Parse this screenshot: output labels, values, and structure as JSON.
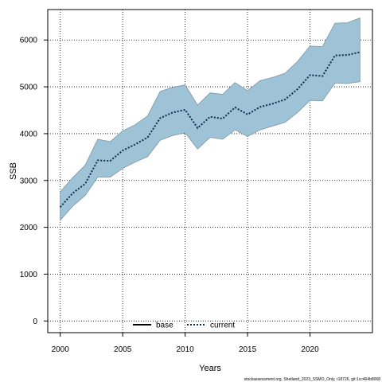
{
  "chart_data": {
    "type": "line",
    "title": "",
    "xlabel": "Years",
    "ylabel": "SSB",
    "xlim": [
      1999,
      2025
    ],
    "ylim": [
      -250,
      6650
    ],
    "x_ticks": [
      "2000",
      "2005",
      "2010",
      "2015",
      "2020"
    ],
    "y_ticks": [
      "0",
      "1000",
      "2000",
      "3000",
      "4000",
      "5000",
      "6000"
    ],
    "x_tick_values": [
      2000,
      2005,
      2010,
      2015,
      2020
    ],
    "y_tick_values": [
      0,
      1000,
      2000,
      3000,
      4000,
      5000,
      6000
    ],
    "grid": true,
    "legend_position": "bottom",
    "x": [
      2000,
      2001,
      2002,
      2003,
      2004,
      2005,
      2006,
      2007,
      2008,
      2009,
      2010,
      2011,
      2012,
      2013,
      2014,
      2015,
      2016,
      2017,
      2018,
      2019,
      2020,
      2021,
      2022,
      2023,
      2024
    ],
    "series": [
      {
        "name": "base",
        "color": "#000000",
        "style": "solid",
        "values": null
      },
      {
        "name": "current",
        "color": "#0a2f4f",
        "style": "dotted",
        "values": [
          2430,
          2730,
          2930,
          3430,
          3420,
          3640,
          3770,
          3920,
          4330,
          4450,
          4510,
          4120,
          4360,
          4320,
          4560,
          4410,
          4570,
          4640,
          4730,
          4950,
          5250,
          5230,
          5670,
          5680,
          5740
        ]
      }
    ],
    "band": {
      "color": "#9ec2d6",
      "edge_color": "#7f97a4",
      "lower": [
        2150,
        2450,
        2680,
        3070,
        3070,
        3260,
        3390,
        3510,
        3860,
        3960,
        4020,
        3670,
        3920,
        3880,
        4080,
        3940,
        4080,
        4160,
        4240,
        4450,
        4710,
        4700,
        5080,
        5070,
        5110
      ],
      "upper": [
        2760,
        3060,
        3330,
        3880,
        3830,
        4060,
        4190,
        4380,
        4900,
        4990,
        5040,
        4610,
        4870,
        4840,
        5090,
        4920,
        5130,
        5200,
        5290,
        5540,
        5870,
        5860,
        6360,
        6370,
        6470
      ]
    },
    "footnote": "stockassessment.org, Shetland_2023_SSMO_Only, r18726, git:1cc464b8068"
  }
}
